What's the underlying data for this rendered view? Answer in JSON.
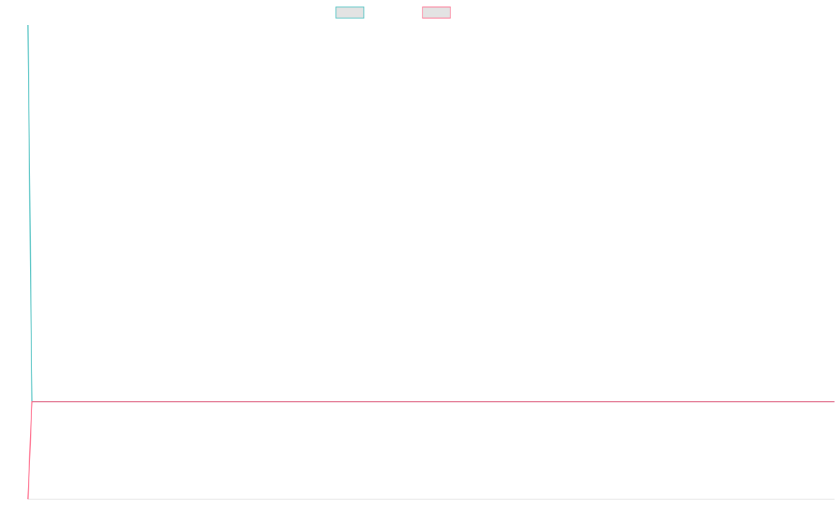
{
  "chart_data": {
    "type": "line",
    "title": "",
    "xlabel": "",
    "ylabel": "",
    "legend_position": "top-center",
    "grid": false,
    "x_range": [
      0,
      100
    ],
    "y_range": [
      -0.7,
      2.7
    ],
    "series": [
      {
        "legend_swatch_color": "#4bc0c0",
        "line_color": "#4bc0c0",
        "fill_color": "rgba(224,224,224,0.9)",
        "x": [
          0,
          0.5,
          100
        ],
        "y": [
          2.7,
          0,
          0
        ]
      },
      {
        "legend_swatch_color": "#ff6384",
        "line_color": "#ff6384",
        "fill_color": "rgba(224,224,224,0.9)",
        "x": [
          0,
          0.5,
          100
        ],
        "y": [
          -0.7,
          0,
          0
        ]
      }
    ],
    "baseline": {
      "y": 0,
      "color": "#6b93b5"
    },
    "axis_color": "#dddddd"
  }
}
